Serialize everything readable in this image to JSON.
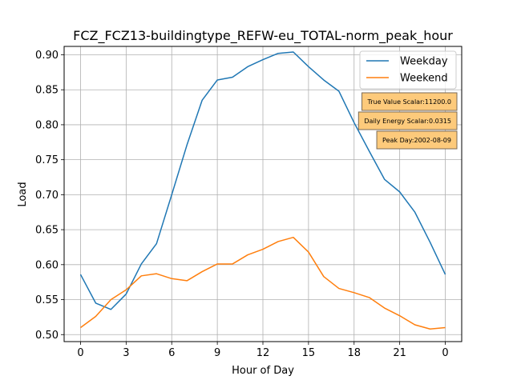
{
  "chart_data": {
    "type": "line",
    "title": "FCZ_FCZ13-buildingtype_REFW-eu_TOTAL-norm_peak_hour",
    "xlabel": "Hour of Day",
    "ylabel": "Load",
    "x_ticks": [
      "0",
      "3",
      "6",
      "9",
      "12",
      "15",
      "18",
      "21",
      "0"
    ],
    "y_ticks": [
      "0.50",
      "0.55",
      "0.60",
      "0.65",
      "0.70",
      "0.75",
      "0.80",
      "0.85",
      "0.90"
    ],
    "ylim": [
      0.49,
      0.912
    ],
    "grid": true,
    "legend_position": "top-right",
    "x": [
      0,
      1,
      2,
      3,
      4,
      5,
      6,
      7,
      8,
      9,
      10,
      11,
      12,
      13,
      14,
      15,
      16,
      17,
      18,
      19,
      20,
      21,
      22,
      23,
      24
    ],
    "series": [
      {
        "name": "Weekday",
        "color": "#1f77b4",
        "values": [
          0.586,
          0.545,
          0.536,
          0.558,
          0.601,
          0.63,
          0.7,
          0.771,
          0.835,
          0.864,
          0.868,
          0.883,
          0.893,
          0.902,
          0.904,
          0.883,
          0.864,
          0.848,
          0.803,
          0.762,
          0.722,
          0.704,
          0.675,
          0.632,
          0.586
        ]
      },
      {
        "name": "Weekend",
        "color": "#ff7f0e",
        "values": [
          0.51,
          0.526,
          0.55,
          0.564,
          0.584,
          0.587,
          0.58,
          0.577,
          0.59,
          0.601,
          0.601,
          0.614,
          0.622,
          0.633,
          0.639,
          0.618,
          0.583,
          0.566,
          0.56,
          0.553,
          0.538,
          0.527,
          0.514,
          0.508,
          0.51
        ]
      }
    ],
    "annotations": [
      "True Value Scalar:11200.0",
      "Daily Energy Scalar:0.0315",
      "Peak Day:2002-08-09"
    ],
    "annotation_style": {
      "fill": "#fdca7b",
      "stroke": "#7a6a55"
    }
  }
}
